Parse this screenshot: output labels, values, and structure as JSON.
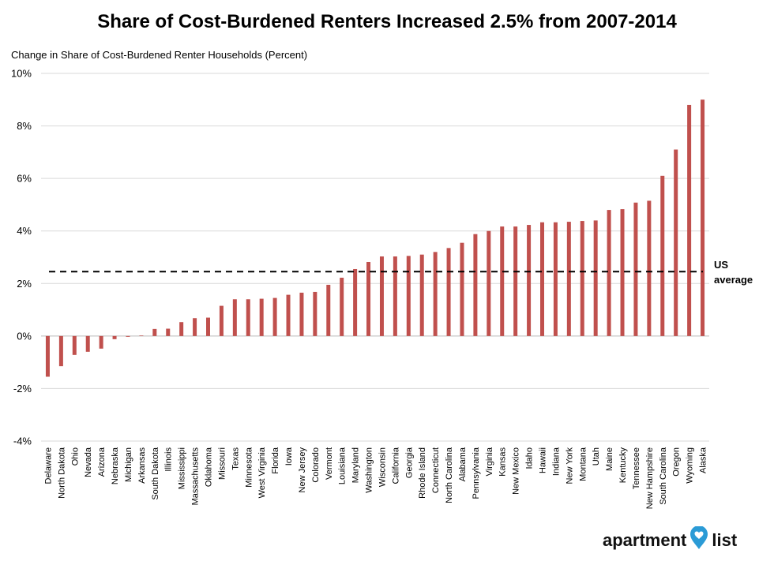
{
  "chart_data": {
    "type": "bar",
    "title": "Share of Cost-Burdened Renters Increased 2.5% from 2007-2014",
    "ylabel": "Change in Share of Cost-Burdened Renter Households (Percent)",
    "ylim": [
      -4,
      10
    ],
    "yticks": [
      -4,
      -2,
      0,
      2,
      4,
      6,
      8,
      10
    ],
    "ytick_labels": [
      "-4%",
      "-2%",
      "0%",
      "2%",
      "4%",
      "6%",
      "8%",
      "10%"
    ],
    "grid": true,
    "bar_color": "#c0504d",
    "categories": [
      "Delaware",
      "North Dakota",
      "Ohio",
      "Nevada",
      "Arizona",
      "Nebraska",
      "Michigan",
      "Arkansas",
      "South Dakota",
      "Illinois",
      "Mississippi",
      "Massachusetts",
      "Oklahoma",
      "Missouri",
      "Texas",
      "Minnesota",
      "West Virginia",
      "Florida",
      "Iowa",
      "New Jersey",
      "Colorado",
      "Vermont",
      "Louisiana",
      "Maryland",
      "Washington",
      "Wisconsin",
      "California",
      "Georgia",
      "Rhode Island",
      "Connecticut",
      "North Carolina",
      "Alabama",
      "Pennsylvania",
      "Virginia",
      "Kansas",
      "New Mexico",
      "Idaho",
      "Hawaii",
      "Indiana",
      "New York",
      "Montana",
      "Utah",
      "Maine",
      "Kentucky",
      "Tennessee",
      "New Hampshire",
      "South Carolina",
      "Oregon",
      "Wyoming",
      "Alaska"
    ],
    "values": [
      -1.55,
      -1.15,
      -0.72,
      -0.6,
      -0.48,
      -0.12,
      -0.03,
      0.02,
      0.27,
      0.28,
      0.53,
      0.68,
      0.7,
      1.15,
      1.4,
      1.4,
      1.42,
      1.45,
      1.57,
      1.65,
      1.68,
      1.95,
      2.22,
      2.55,
      2.82,
      3.03,
      3.03,
      3.05,
      3.1,
      3.2,
      3.35,
      3.55,
      3.88,
      4.0,
      4.17,
      4.17,
      4.23,
      4.33,
      4.33,
      4.35,
      4.38,
      4.4,
      4.8,
      4.83,
      5.08,
      5.15,
      6.1,
      7.1,
      8.8,
      9.0
    ],
    "reference_line": {
      "value": 2.45,
      "label_line1": "US",
      "label_line2": "average",
      "style": "dashed"
    }
  },
  "logo": {
    "text_left": "apartment",
    "text_right": "list",
    "pin_color": "#2b9bd6"
  }
}
